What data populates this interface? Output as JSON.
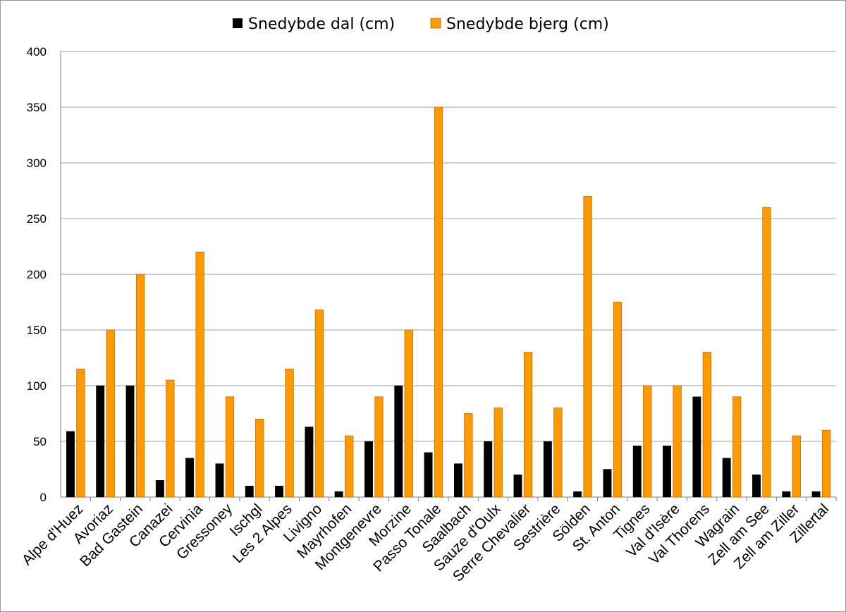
{
  "chart_data": {
    "type": "bar",
    "categories": [
      "Alpe d'Huez",
      "Avoriaz",
      "Bad Gastein",
      "Canazei",
      "Cervinia",
      "Gressoney",
      "Ischgl",
      "Les 2 Alpes",
      "Livigno",
      "Mayrhofen",
      "Montgenevre",
      "Morzine",
      "Passo Tonale",
      "Saalbach",
      "Sauze d'Oulx",
      "Serre Chevalier",
      "Sestrière",
      "Sölden",
      "St. Anton",
      "Tignes",
      "Val d'Isère",
      "Val Thorens",
      "Wagrain",
      "Zell am See",
      "Zell am Ziller",
      "Zillertal"
    ],
    "series": [
      {
        "name": "Snedybde dal (cm)",
        "color": "#000000",
        "values": [
          59,
          100,
          100,
          15,
          35,
          30,
          10,
          10,
          63,
          5,
          50,
          100,
          40,
          30,
          50,
          20,
          50,
          5,
          25,
          46,
          46,
          90,
          35,
          20,
          5,
          5
        ]
      },
      {
        "name": "Snedybde bjerg (cm)",
        "color": "#ff9900",
        "values": [
          115,
          150,
          200,
          105,
          220,
          90,
          70,
          115,
          168,
          55,
          90,
          150,
          350,
          75,
          80,
          130,
          80,
          270,
          175,
          100,
          100,
          130,
          90,
          260,
          55,
          60
        ]
      }
    ],
    "y_ticks": [
      "0",
      "50",
      "100",
      "150",
      "200",
      "250",
      "300",
      "350",
      "400"
    ],
    "ylim": [
      0,
      400
    ],
    "grid": true,
    "legend_position": "top-center"
  }
}
